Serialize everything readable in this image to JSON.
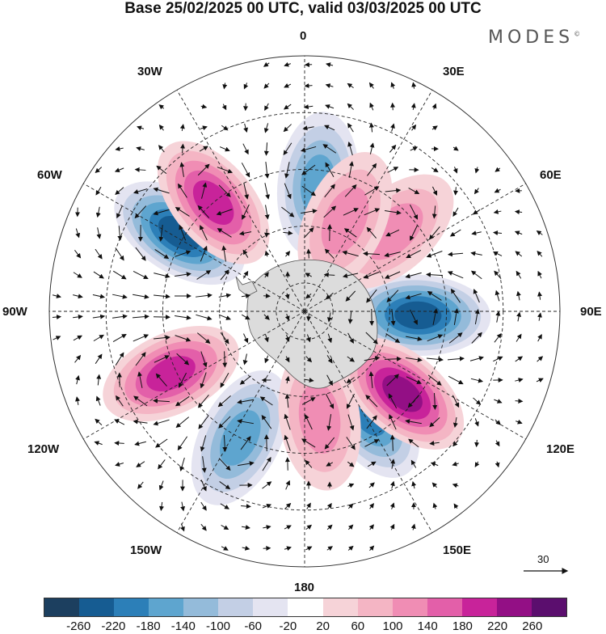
{
  "title": "Base 25/02/2025 00 UTC, valid 03/03/2025 00 UTC",
  "brand": "MODES",
  "brand_mark": "©",
  "longitudes": [
    "0",
    "30E",
    "60E",
    "90E",
    "120E",
    "150E",
    "180",
    "150W",
    "120W",
    "90W",
    "60W",
    "30W"
  ],
  "reference_vector_label": "30",
  "colorbar": {
    "colors": [
      "#1c3f5f",
      "#165c92",
      "#2c7fb8",
      "#5ea5cf",
      "#94bbda",
      "#c3cfe5",
      "#e4e4f1",
      "#ffffff",
      "#f6d3d8",
      "#f4b5c4",
      "#f08db4",
      "#e35fa9",
      "#c8239a",
      "#930f85",
      "#5b0e6e"
    ],
    "tick_labels": [
      "-260",
      "-220",
      "-180",
      "-140",
      "-100",
      "-60",
      "-20",
      "20",
      "60",
      "100",
      "140",
      "180",
      "220",
      "260"
    ]
  },
  "anomaly_centers": [
    {
      "lon_deg": 302,
      "lat": -38,
      "value": -250
    },
    {
      "lon_deg": 92,
      "lat": -50,
      "value": -240
    },
    {
      "lon_deg": 6,
      "lat": -45,
      "value": -170
    },
    {
      "lon_deg": 148,
      "lat": -48,
      "value": -210
    },
    {
      "lon_deg": 207,
      "lat": -40,
      "value": -150
    },
    {
      "lon_deg": 130,
      "lat": -45,
      "value": 250
    },
    {
      "lon_deg": 320,
      "lat": -40,
      "value": 200
    },
    {
      "lon_deg": 245,
      "lat": -38,
      "value": 180
    },
    {
      "lon_deg": 48,
      "lat": -48,
      "value": 120
    },
    {
      "lon_deg": 24,
      "lat": -55,
      "value": 100
    },
    {
      "lon_deg": 172,
      "lat": -52,
      "value": 120
    }
  ]
}
